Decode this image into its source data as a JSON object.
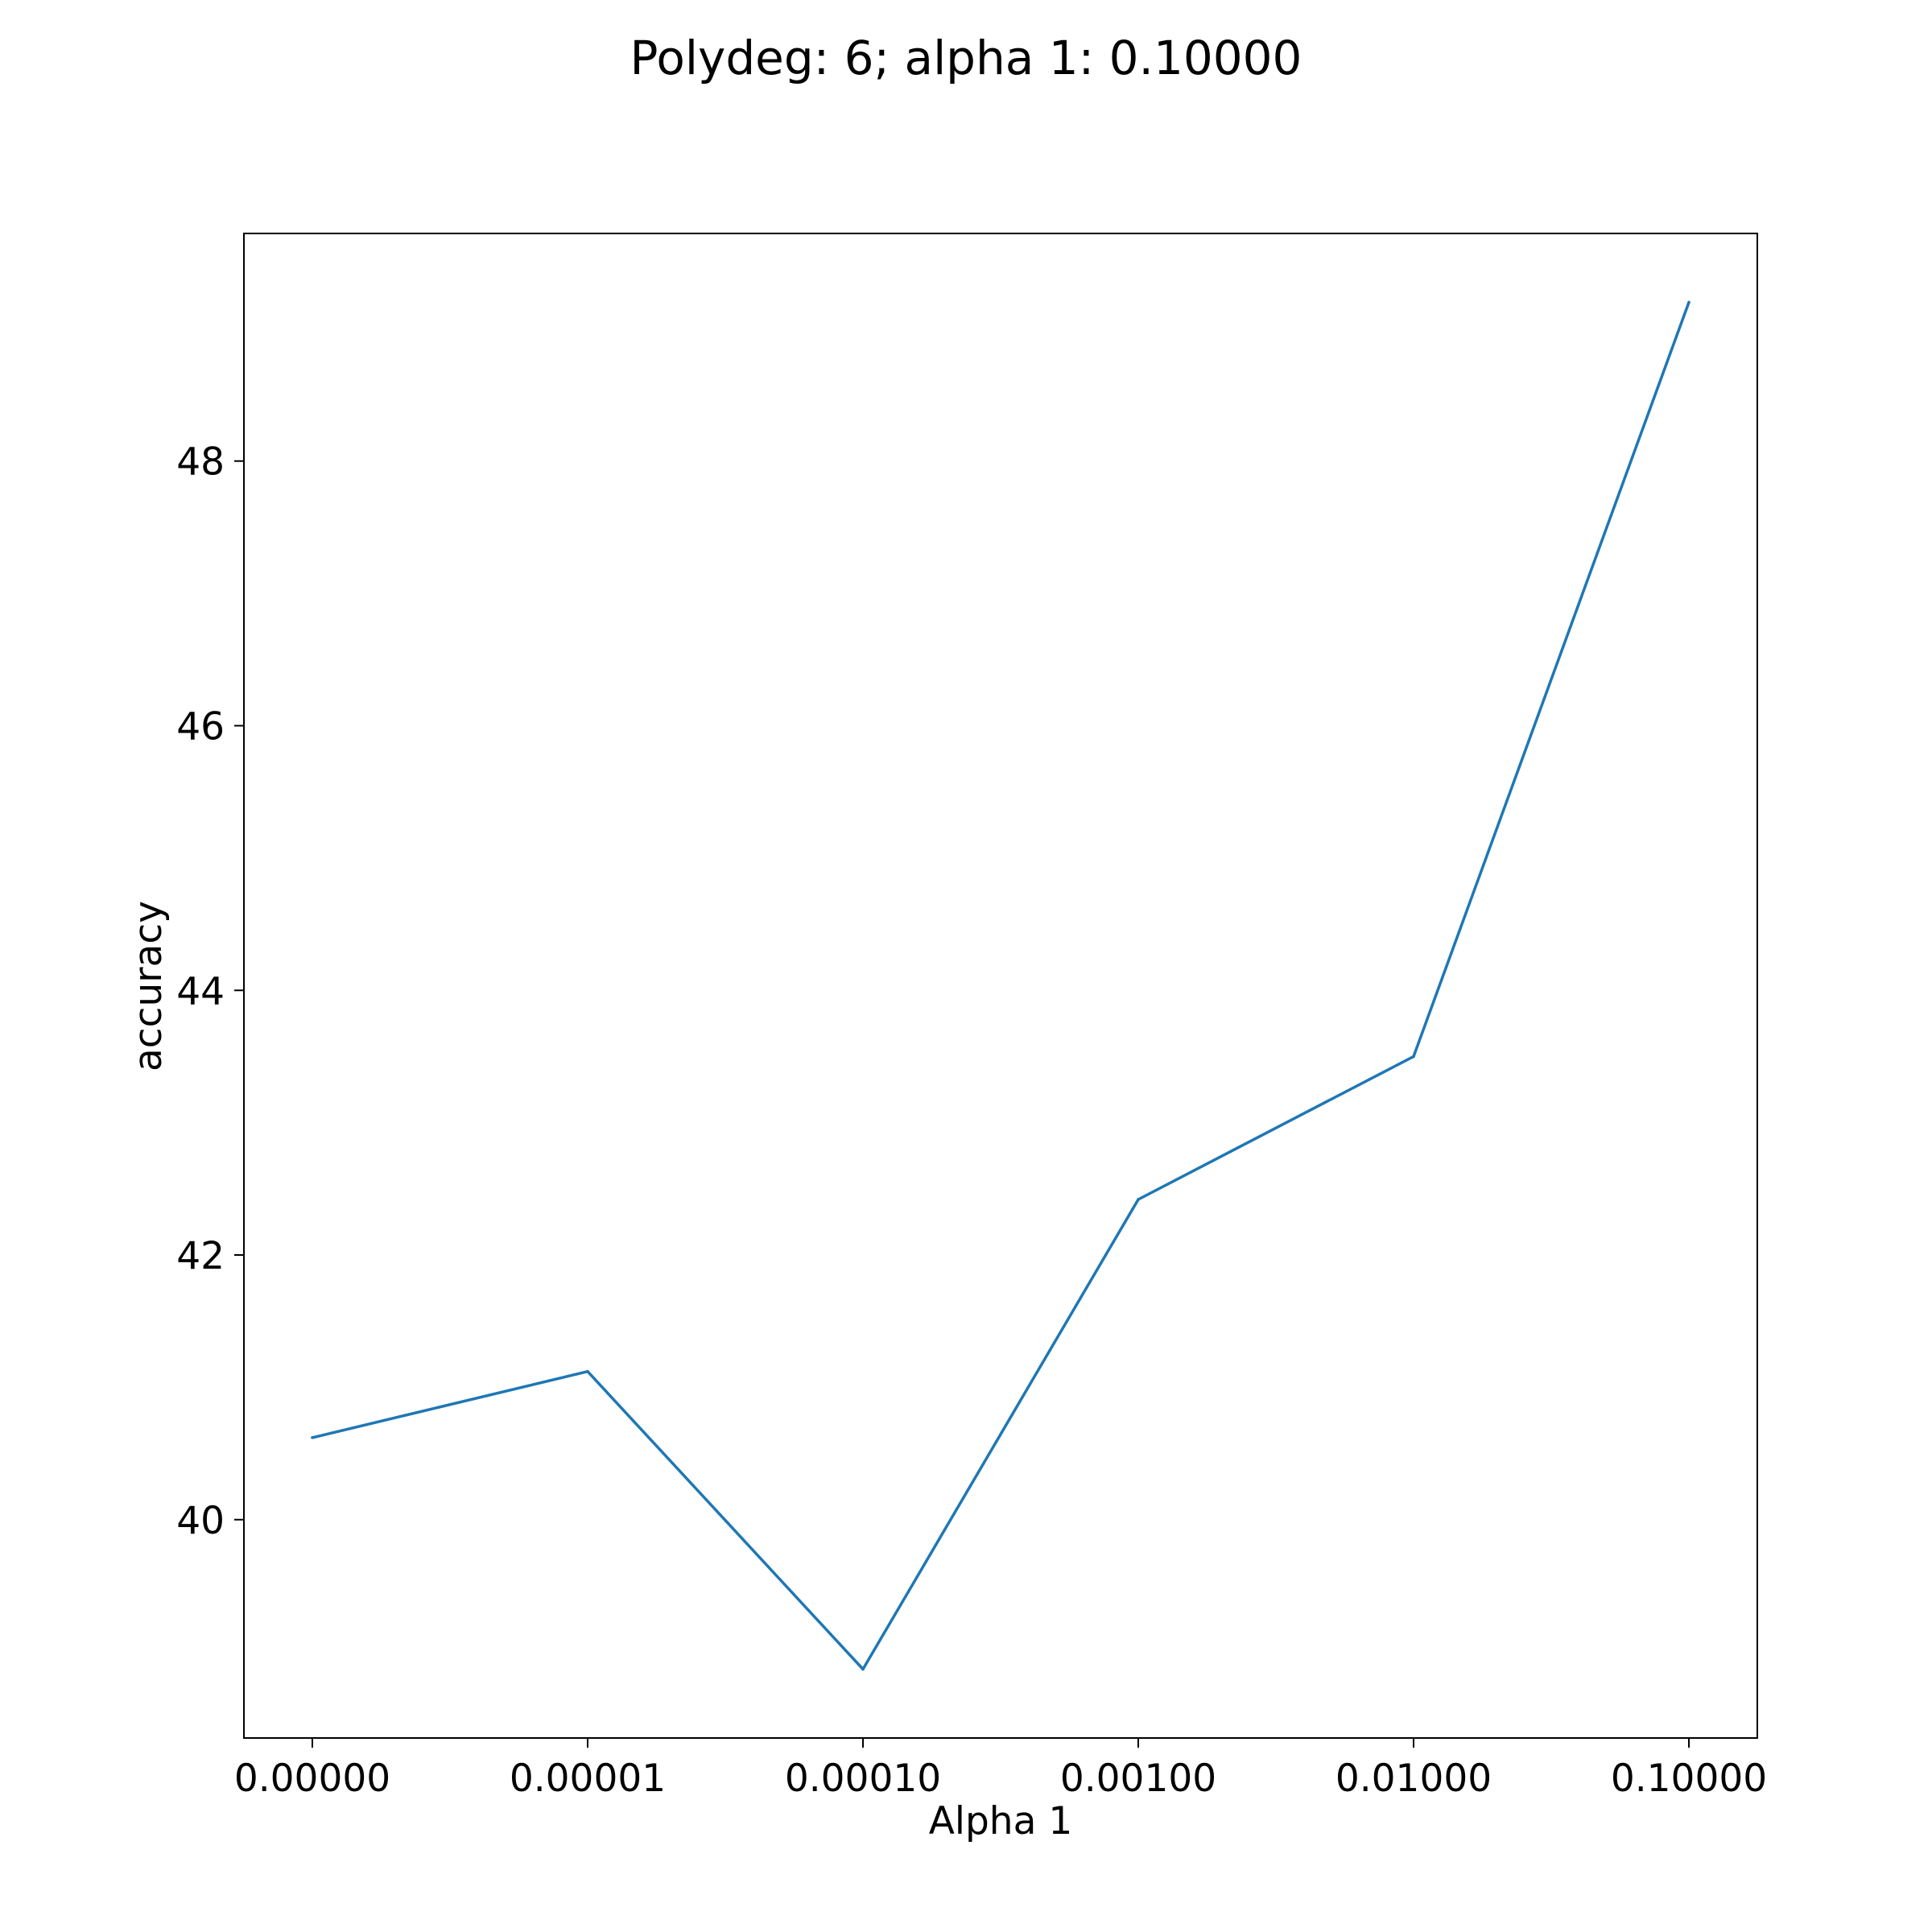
{
  "chart_data": {
    "type": "line",
    "title": "Polydeg: 6; alpha 1: 0.10000",
    "xlabel": "Alpha 1",
    "ylabel": "accuracy",
    "categories": [
      "0.00000",
      "0.00001",
      "0.00010",
      "0.00100",
      "0.01000",
      "0.10000"
    ],
    "series": [
      {
        "values": [
          40.62,
          41.12,
          38.87,
          42.42,
          43.5,
          49.2
        ],
        "color": "#1f77b4"
      }
    ],
    "yticks": [
      40,
      42,
      44,
      46,
      48
    ],
    "ylim": [
      38.35,
      49.72
    ],
    "grid": false,
    "legend": "none"
  }
}
